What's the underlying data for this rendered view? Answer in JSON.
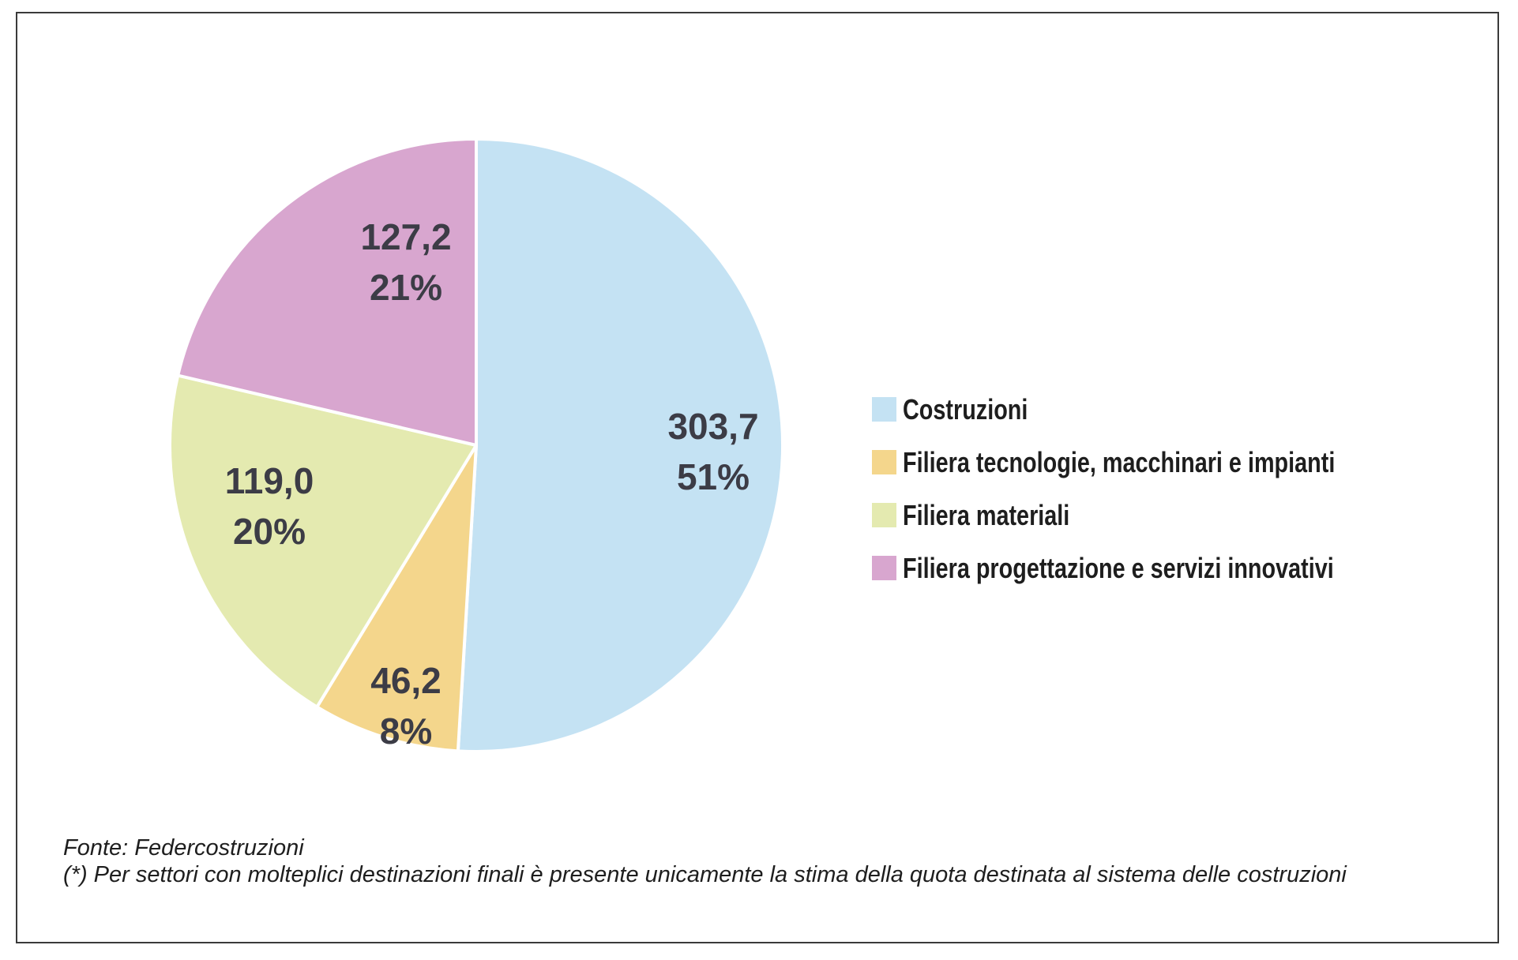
{
  "chart_data": {
    "type": "pie",
    "categories": [
      "Costruzioni",
      "Filiera tecnologie, macchinari e impianti",
      "Filiera materiali",
      "Filiera progettazione e servizi innovativi"
    ],
    "values": [
      303.7,
      46.2,
      119.0,
      127.2
    ],
    "value_labels": [
      "303,7",
      "46,2",
      "119,0",
      "127,2"
    ],
    "percent_labels": [
      "51%",
      "8%",
      "20%",
      "21%"
    ],
    "colors": [
      "#c4e2f3",
      "#f4d68c",
      "#e4eab0",
      "#d8a6cf"
    ],
    "start_angle_deg": 0,
    "direction": "clockwise",
    "legend_position": "right"
  },
  "legend": {
    "items": [
      {
        "label": "Costruzioni",
        "color": "#c4e2f3"
      },
      {
        "label": "Filiera tecnologie, macchinari e impianti",
        "color": "#f4d68c"
      },
      {
        "label": "Filiera materiali",
        "color": "#e4eab0"
      },
      {
        "label": "Filiera progettazione e servizi innovativi",
        "color": "#d8a6cf"
      }
    ]
  },
  "footnote": {
    "source": "Fonte: Federcostruzioni",
    "note": "(*) Per settori con molteplici destinazioni finali è presente unicamente la stima della quota destinata al sistema delle costruzioni"
  }
}
